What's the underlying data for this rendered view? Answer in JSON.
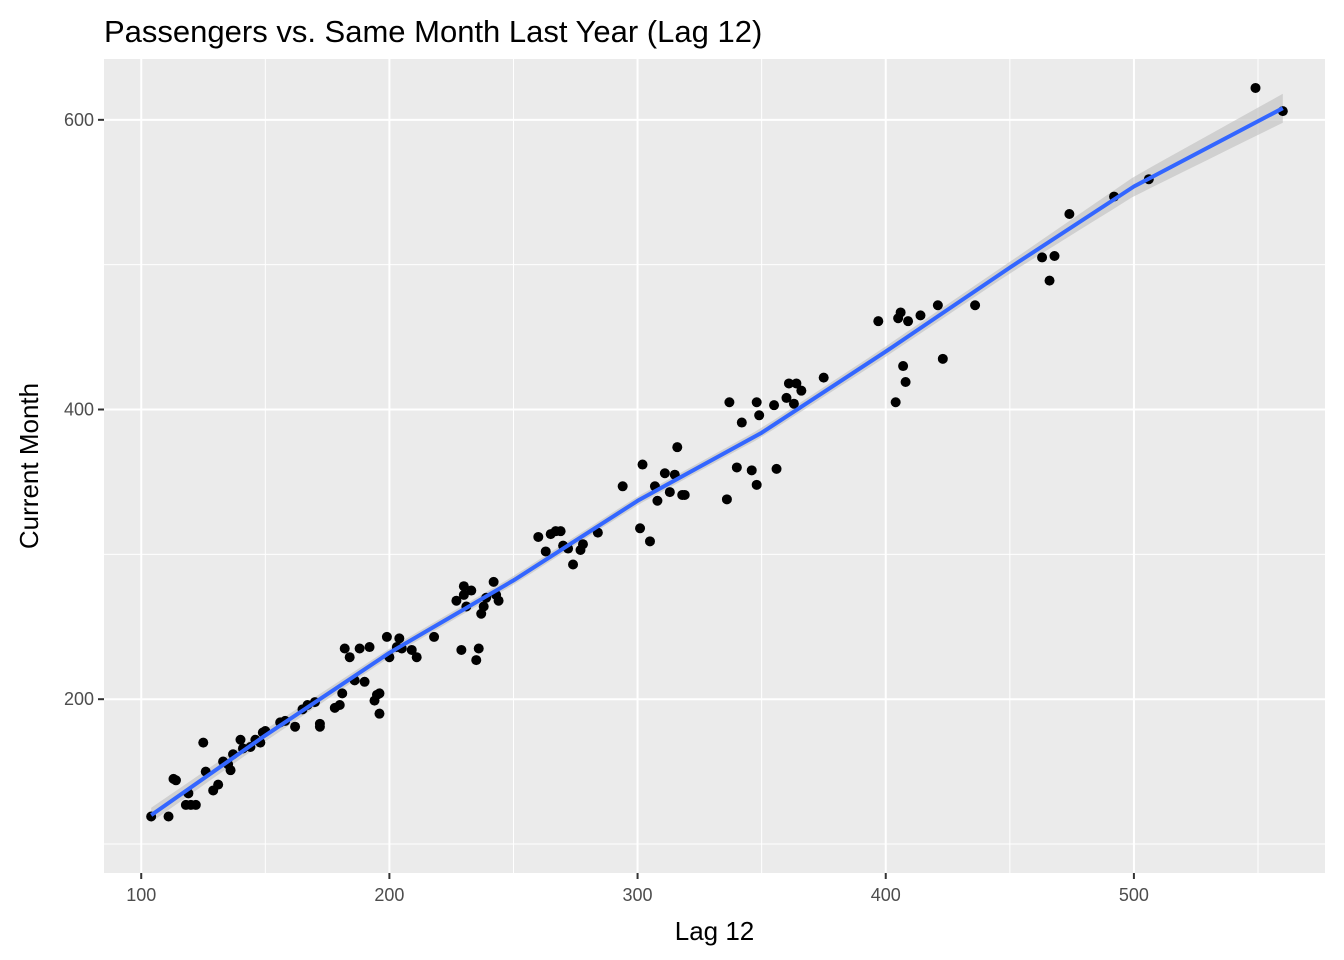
{
  "chart_data": {
    "type": "scatter",
    "title": "Passengers vs. Same Month Last Year (Lag 12)",
    "xlabel": "Lag 12",
    "ylabel": "Current Month",
    "xlim": [
      85,
      577
    ],
    "ylim": [
      80,
      642
    ],
    "x_ticks": [
      100,
      200,
      300,
      400,
      500
    ],
    "y_ticks": [
      200,
      400,
      600
    ],
    "x_tick_labels": [
      "100",
      "200",
      "300",
      "400",
      "500"
    ],
    "y_tick_labels": [
      "200",
      "400",
      "600"
    ],
    "grid": true,
    "background": "#ebebeb",
    "point_color": "#000000",
    "trend_color": "#3366ff",
    "band_color": "#bebebe",
    "points": [
      [
        104,
        119
      ],
      [
        111,
        119
      ],
      [
        113,
        145
      ],
      [
        114,
        144
      ],
      [
        118,
        127
      ],
      [
        119,
        135
      ],
      [
        120,
        127
      ],
      [
        122,
        127
      ],
      [
        125,
        170
      ],
      [
        126,
        150
      ],
      [
        129,
        137
      ],
      [
        131,
        141
      ],
      [
        133,
        157
      ],
      [
        135,
        155
      ],
      [
        136,
        151
      ],
      [
        137,
        162
      ],
      [
        140,
        172
      ],
      [
        141,
        166
      ],
      [
        144,
        167
      ],
      [
        146,
        172
      ],
      [
        148,
        170
      ],
      [
        149,
        177
      ],
      [
        150,
        178
      ],
      [
        156,
        184
      ],
      [
        158,
        185
      ],
      [
        162,
        181
      ],
      [
        165,
        193
      ],
      [
        167,
        196
      ],
      [
        170,
        198
      ],
      [
        172,
        181
      ],
      [
        172,
        183
      ],
      [
        178,
        194
      ],
      [
        180,
        196
      ],
      [
        181,
        204
      ],
      [
        182,
        235
      ],
      [
        184,
        229
      ],
      [
        186,
        213
      ],
      [
        188,
        235
      ],
      [
        190,
        212
      ],
      [
        192,
        236
      ],
      [
        194,
        199
      ],
      [
        195,
        203
      ],
      [
        196,
        190
      ],
      [
        196,
        204
      ],
      [
        199,
        243
      ],
      [
        200,
        229
      ],
      [
        203,
        236
      ],
      [
        204,
        242
      ],
      [
        205,
        235
      ],
      [
        209,
        234
      ],
      [
        211,
        229
      ],
      [
        218,
        243
      ],
      [
        227,
        268
      ],
      [
        229,
        234
      ],
      [
        230,
        278
      ],
      [
        230,
        272
      ],
      [
        231,
        264
      ],
      [
        233,
        275
      ],
      [
        235,
        227
      ],
      [
        236,
        235
      ],
      [
        237,
        259
      ],
      [
        238,
        264
      ],
      [
        239,
        270
      ],
      [
        242,
        281
      ],
      [
        243,
        272
      ],
      [
        244,
        268
      ],
      [
        260,
        312
      ],
      [
        263,
        302
      ],
      [
        265,
        314
      ],
      [
        267,
        316
      ],
      [
        269,
        316
      ],
      [
        270,
        306
      ],
      [
        272,
        304
      ],
      [
        274,
        293
      ],
      [
        277,
        303
      ],
      [
        278,
        307
      ],
      [
        284,
        315
      ],
      [
        294,
        347
      ],
      [
        301,
        318
      ],
      [
        302,
        362
      ],
      [
        305,
        309
      ],
      [
        307,
        347
      ],
      [
        308,
        337
      ],
      [
        311,
        356
      ],
      [
        313,
        343
      ],
      [
        315,
        355
      ],
      [
        316,
        374
      ],
      [
        318,
        341
      ],
      [
        319,
        341
      ],
      [
        336,
        338
      ],
      [
        337,
        405
      ],
      [
        340,
        360
      ],
      [
        342,
        391
      ],
      [
        346,
        358
      ],
      [
        348,
        348
      ],
      [
        348,
        405
      ],
      [
        349,
        396
      ],
      [
        355,
        403
      ],
      [
        356,
        359
      ],
      [
        360,
        408
      ],
      [
        361,
        418
      ],
      [
        363,
        404
      ],
      [
        364,
        418
      ],
      [
        366,
        413
      ],
      [
        375,
        422
      ],
      [
        397,
        461
      ],
      [
        404,
        405
      ],
      [
        405,
        463
      ],
      [
        406,
        467
      ],
      [
        407,
        430
      ],
      [
        408,
        419
      ],
      [
        409,
        461
      ],
      [
        414,
        465
      ],
      [
        421,
        472
      ],
      [
        423,
        435
      ],
      [
        436,
        472
      ],
      [
        463,
        505
      ],
      [
        466,
        489
      ],
      [
        468,
        506
      ],
      [
        474,
        535
      ],
      [
        492,
        547
      ],
      [
        506,
        559
      ],
      [
        549,
        622
      ],
      [
        560,
        606
      ]
    ],
    "trend_line": [
      [
        104,
        120
      ],
      [
        150,
        175
      ],
      [
        200,
        232
      ],
      [
        250,
        282
      ],
      [
        300,
        337
      ],
      [
        350,
        384
      ],
      [
        400,
        440
      ],
      [
        450,
        498
      ],
      [
        500,
        554
      ],
      [
        560,
        608
      ]
    ],
    "band_halfwidth": [
      [
        104,
        5
      ],
      [
        200,
        3
      ],
      [
        330,
        3
      ],
      [
        450,
        4
      ],
      [
        560,
        10
      ]
    ]
  }
}
